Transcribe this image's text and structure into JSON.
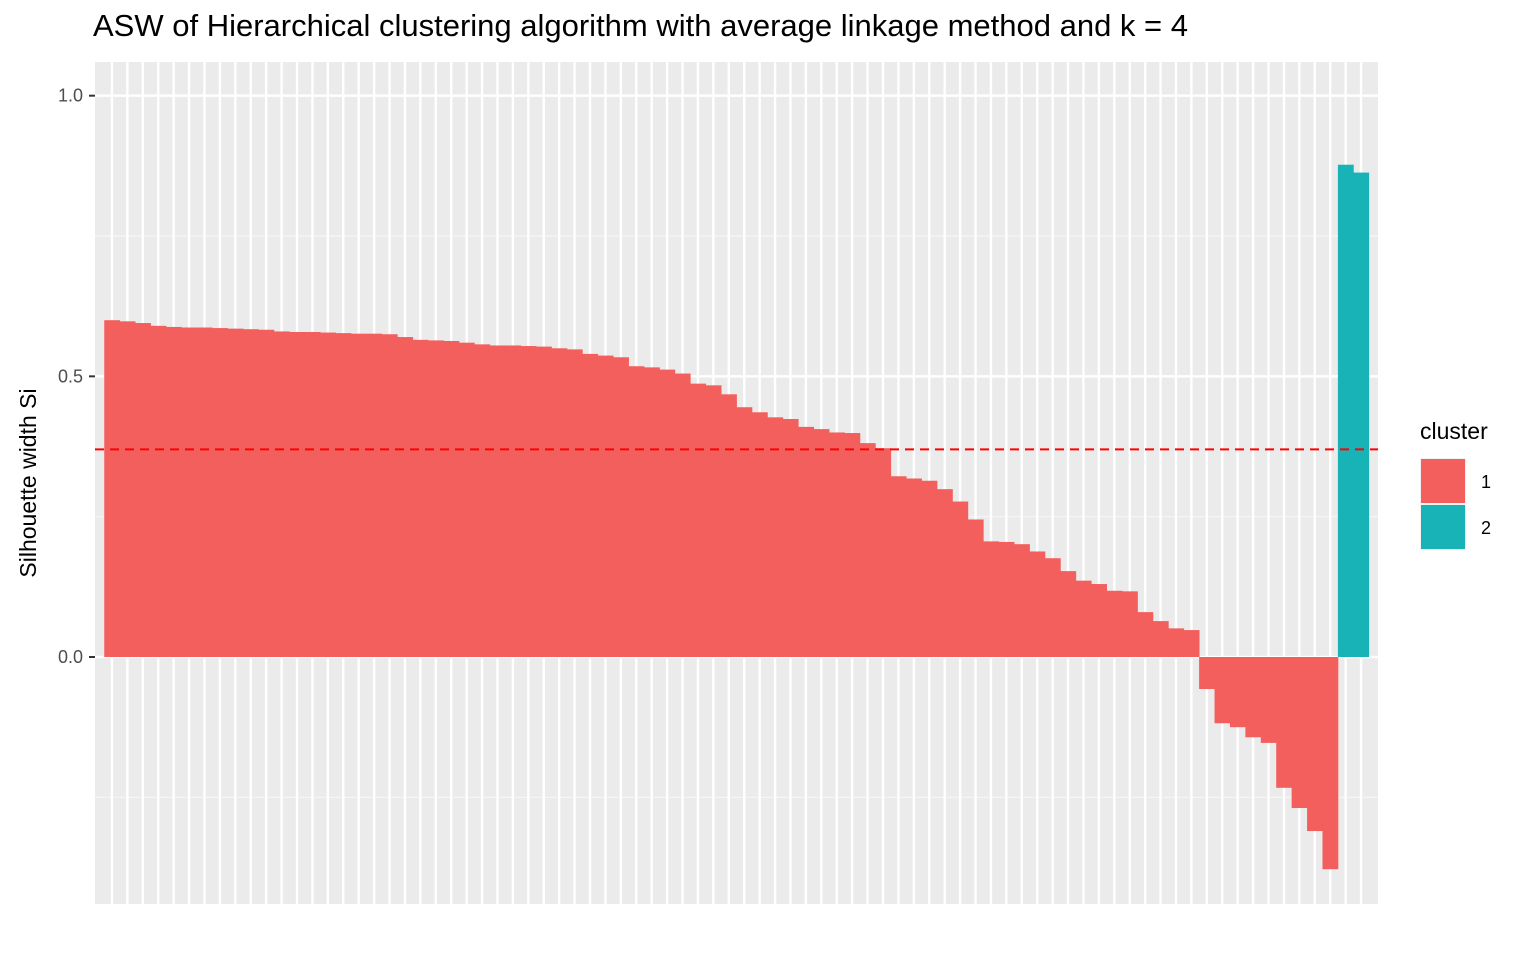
{
  "chart_data": {
    "type": "bar",
    "title": "ASW of Hierarchical clustering algorithm with average linkage method and k = 4",
    "xlabel": "",
    "ylabel": "Silhouette width Si",
    "ylim": [
      -0.44,
      1.06
    ],
    "y_ticks": [
      {
        "value": 0.0,
        "label": "0.0"
      },
      {
        "value": 0.5,
        "label": "0.5"
      },
      {
        "value": 1.0,
        "label": "1.0"
      }
    ],
    "reference_line": {
      "value": 0.37,
      "color": "#ff0000",
      "style": "dashed"
    },
    "grid": true,
    "legend": {
      "title": "cluster",
      "placement": "right",
      "entries": [
        {
          "label": "1",
          "color": "#f8766d"
        },
        {
          "label": "2",
          "color": "#00bfc4"
        }
      ]
    },
    "cluster_colors": {
      "1": "#f25f5c",
      "2": "#17b3b7"
    },
    "series": [
      {
        "name": "1",
        "values": [
          0.6,
          0.598,
          0.595,
          0.59,
          0.588,
          0.587,
          0.587,
          0.586,
          0.585,
          0.584,
          0.583,
          0.58,
          0.579,
          0.579,
          0.578,
          0.577,
          0.576,
          0.576,
          0.575,
          0.57,
          0.565,
          0.564,
          0.563,
          0.56,
          0.557,
          0.555,
          0.555,
          0.554,
          0.553,
          0.55,
          0.548,
          0.54,
          0.537,
          0.534,
          0.518,
          0.516,
          0.512,
          0.505,
          0.487,
          0.484,
          0.468,
          0.445,
          0.436,
          0.427,
          0.424,
          0.41,
          0.406,
          0.4,
          0.399,
          0.381,
          0.372,
          0.322,
          0.318,
          0.314,
          0.299,
          0.277,
          0.245,
          0.206,
          0.205,
          0.201,
          0.188,
          0.176,
          0.153,
          0.136,
          0.13,
          0.118,
          0.117,
          0.08,
          0.064,
          0.051,
          0.048,
          -0.057,
          -0.118,
          -0.125,
          -0.143,
          -0.153,
          -0.233,
          -0.269,
          -0.31,
          -0.378
        ]
      },
      {
        "name": "2",
        "values": [
          0.877,
          0.863
        ]
      }
    ]
  }
}
